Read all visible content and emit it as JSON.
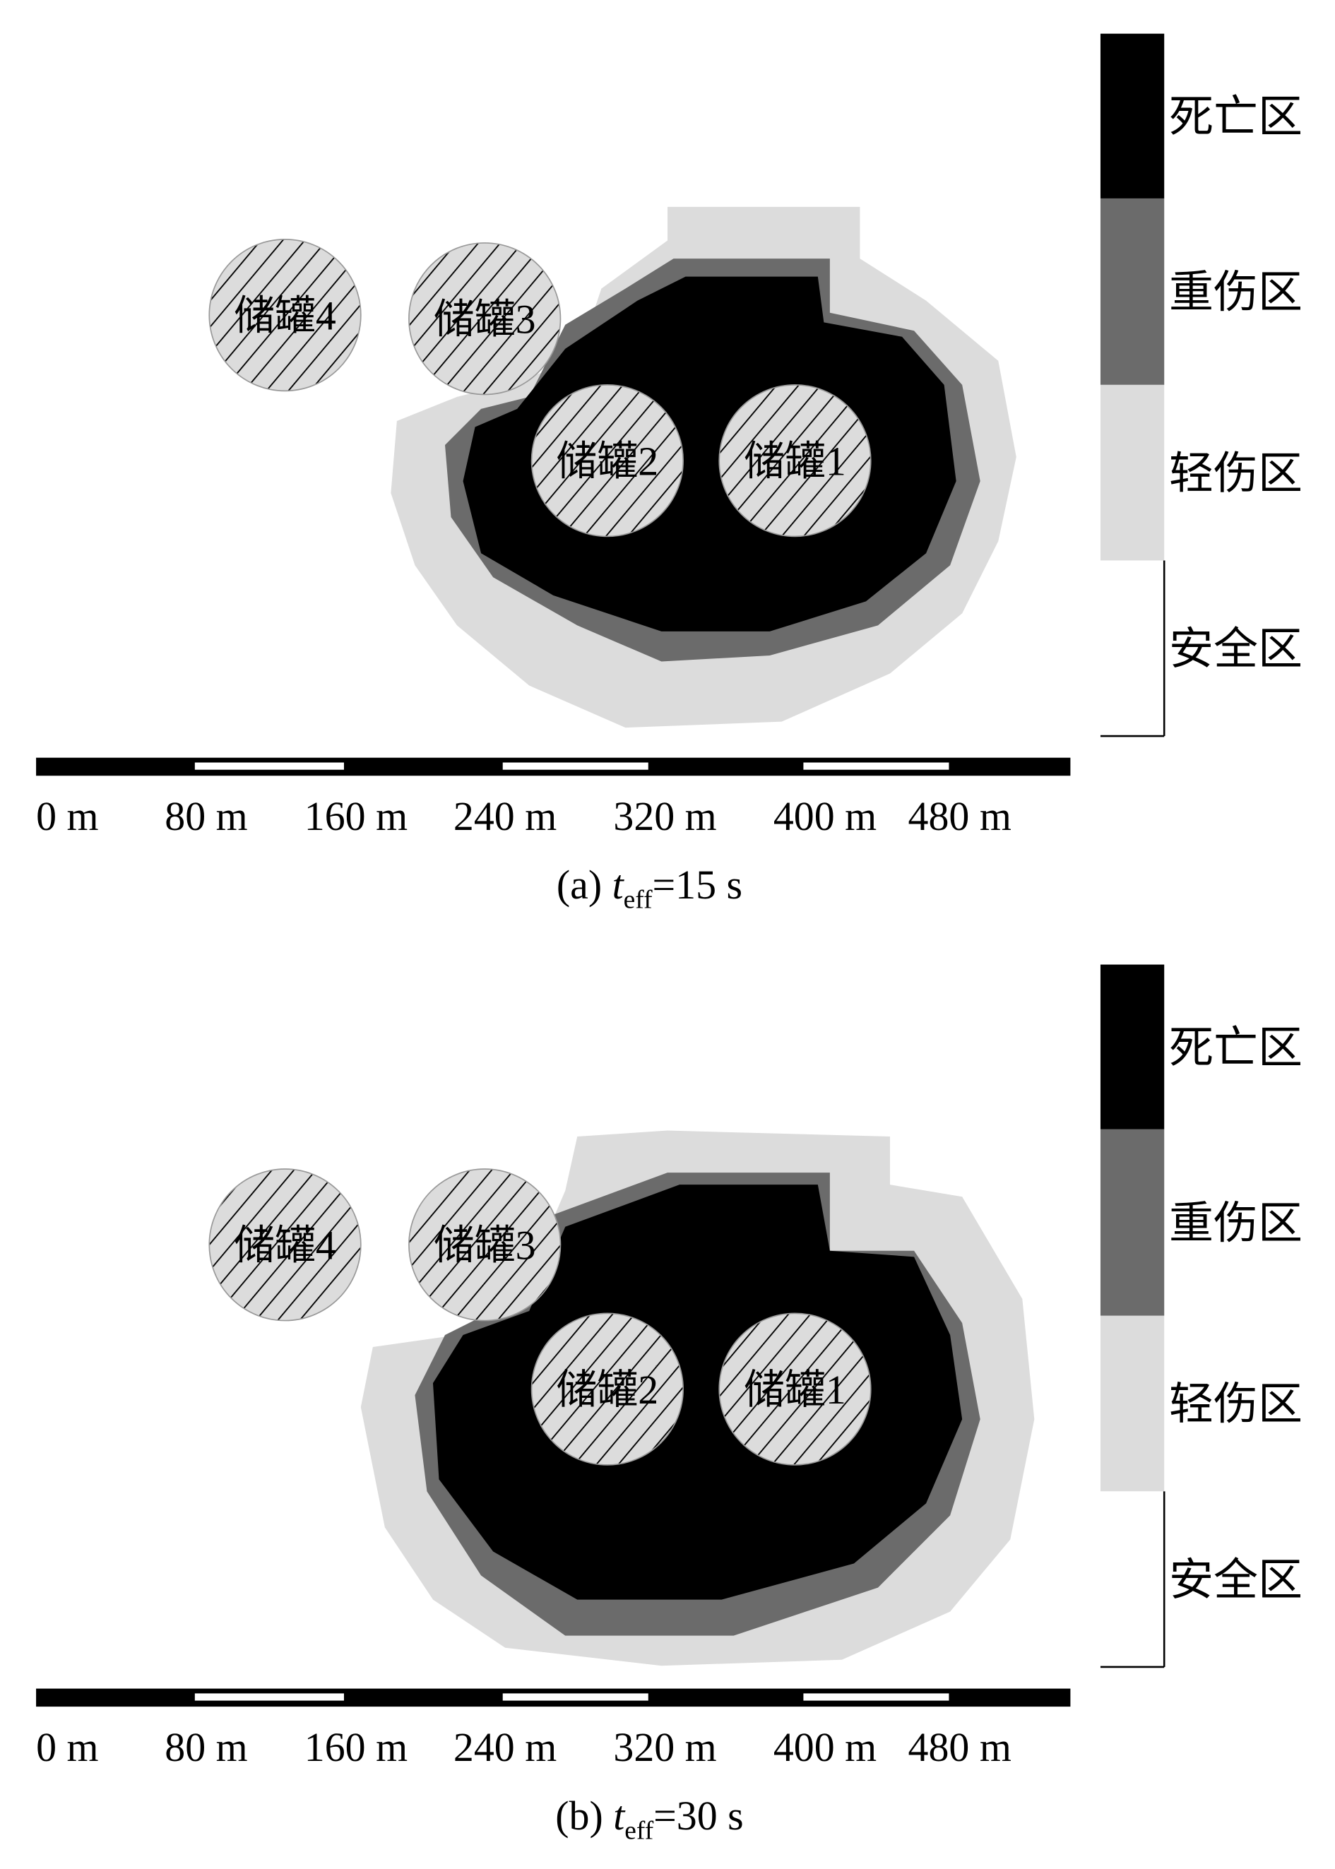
{
  "colors": {
    "death": "#000000",
    "severe": "#6b6b6b",
    "minor": "#dcdcdc",
    "safe": "#ffffff",
    "tank_fill": "#dcdcdc"
  },
  "legend": [
    {
      "label": "死亡区",
      "color": "#000000"
    },
    {
      "label": "重伤区",
      "color": "#6b6b6b"
    },
    {
      "label": "轻伤区",
      "color": "#dcdcdc"
    },
    {
      "label": "安全区",
      "color": "#ffffff"
    }
  ],
  "tanks": [
    "储罐1",
    "储罐2",
    "储罐3",
    "储罐4"
  ],
  "scale_labels": [
    "0 m",
    "80 m",
    "160 m",
    "240 m",
    "320 m",
    "400 m",
    "480 m"
  ],
  "panels": [
    {
      "caption": {
        "prefix": "(a) ",
        "var": "t",
        "sub": "eff",
        "rest": "=15 s"
      }
    },
    {
      "caption": {
        "prefix": "(b) ",
        "var": "t",
        "sub": "eff",
        "rest": "=30 s"
      }
    }
  ]
}
